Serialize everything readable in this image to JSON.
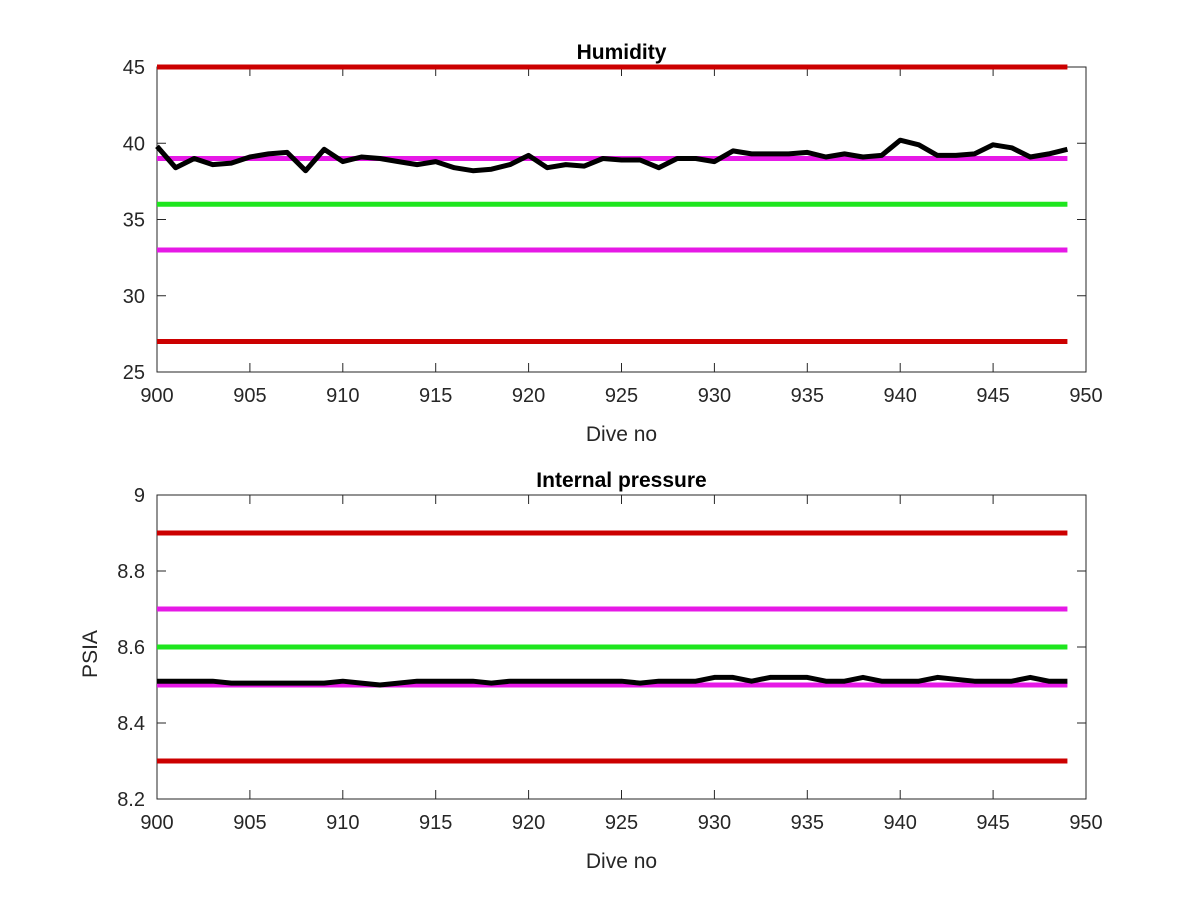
{
  "chart_data": [
    {
      "type": "line",
      "title": "Humidity",
      "xlabel": "Dive no",
      "ylabel": "",
      "xlim": [
        900,
        950
      ],
      "ylim": [
        25,
        45
      ],
      "xticks": [
        900,
        905,
        910,
        915,
        920,
        925,
        930,
        935,
        940,
        945,
        950
      ],
      "yticks": [
        25,
        30,
        35,
        40,
        45
      ],
      "grid": false,
      "reference_lines": [
        {
          "y": 45,
          "color": "#cc0000"
        },
        {
          "y": 39,
          "color": "#e619e6"
        },
        {
          "y": 36,
          "color": "#1ee61e"
        },
        {
          "y": 33,
          "color": "#e619e6"
        },
        {
          "y": 27,
          "color": "#cc0000"
        }
      ],
      "series": [
        {
          "color": "#000000",
          "x": [
            900,
            901,
            902,
            903,
            904,
            905,
            906,
            907,
            908,
            909,
            910,
            911,
            912,
            913,
            914,
            915,
            916,
            917,
            918,
            919,
            920,
            921,
            922,
            923,
            924,
            925,
            926,
            927,
            928,
            929,
            930,
            931,
            932,
            933,
            934,
            935,
            936,
            937,
            938,
            939,
            940,
            941,
            942,
            943,
            944,
            945,
            946,
            947,
            948,
            949
          ],
          "y": [
            39.8,
            38.4,
            39.0,
            38.6,
            38.7,
            39.1,
            39.3,
            39.4,
            38.2,
            39.6,
            38.8,
            39.1,
            39.0,
            38.8,
            38.6,
            38.8,
            38.4,
            38.2,
            38.3,
            38.6,
            39.2,
            38.4,
            38.6,
            38.5,
            39.0,
            38.9,
            38.9,
            38.4,
            39.0,
            39.0,
            38.8,
            39.5,
            39.3,
            39.3,
            39.3,
            39.4,
            39.1,
            39.3,
            39.1,
            39.2,
            40.2,
            39.9,
            39.2,
            39.2,
            39.3,
            39.9,
            39.7,
            39.1,
            39.3,
            39.6
          ]
        }
      ]
    },
    {
      "type": "line",
      "title": "Internal pressure",
      "xlabel": "Dive no",
      "ylabel": "PSIA",
      "xlim": [
        900,
        950
      ],
      "ylim": [
        8.2,
        9
      ],
      "xticks": [
        900,
        905,
        910,
        915,
        920,
        925,
        930,
        935,
        940,
        945,
        950
      ],
      "yticks": [
        8.2,
        8.4,
        8.6,
        8.8,
        9
      ],
      "yticklabels": [
        "8.2",
        "8.4",
        "8.6",
        "8.8",
        "9"
      ],
      "grid": false,
      "reference_lines": [
        {
          "y": 8.9,
          "color": "#cc0000"
        },
        {
          "y": 8.7,
          "color": "#e619e6"
        },
        {
          "y": 8.6,
          "color": "#1ee61e"
        },
        {
          "y": 8.5,
          "color": "#e619e6"
        },
        {
          "y": 8.3,
          "color": "#cc0000"
        }
      ],
      "series": [
        {
          "color": "#000000",
          "x": [
            900,
            901,
            902,
            903,
            904,
            905,
            906,
            907,
            908,
            909,
            910,
            911,
            912,
            913,
            914,
            915,
            916,
            917,
            918,
            919,
            920,
            921,
            922,
            923,
            924,
            925,
            926,
            927,
            928,
            929,
            930,
            931,
            932,
            933,
            934,
            935,
            936,
            937,
            938,
            939,
            940,
            941,
            942,
            943,
            944,
            945,
            946,
            947,
            948,
            949
          ],
          "y": [
            8.51,
            8.51,
            8.51,
            8.51,
            8.505,
            8.505,
            8.505,
            8.505,
            8.505,
            8.505,
            8.51,
            8.505,
            8.5,
            8.505,
            8.51,
            8.51,
            8.51,
            8.51,
            8.505,
            8.51,
            8.51,
            8.51,
            8.51,
            8.51,
            8.51,
            8.51,
            8.505,
            8.51,
            8.51,
            8.51,
            8.52,
            8.52,
            8.51,
            8.52,
            8.52,
            8.52,
            8.51,
            8.51,
            8.52,
            8.51,
            8.51,
            8.51,
            8.52,
            8.515,
            8.51,
            8.51,
            8.51,
            8.52,
            8.51,
            8.51
          ]
        }
      ]
    }
  ]
}
